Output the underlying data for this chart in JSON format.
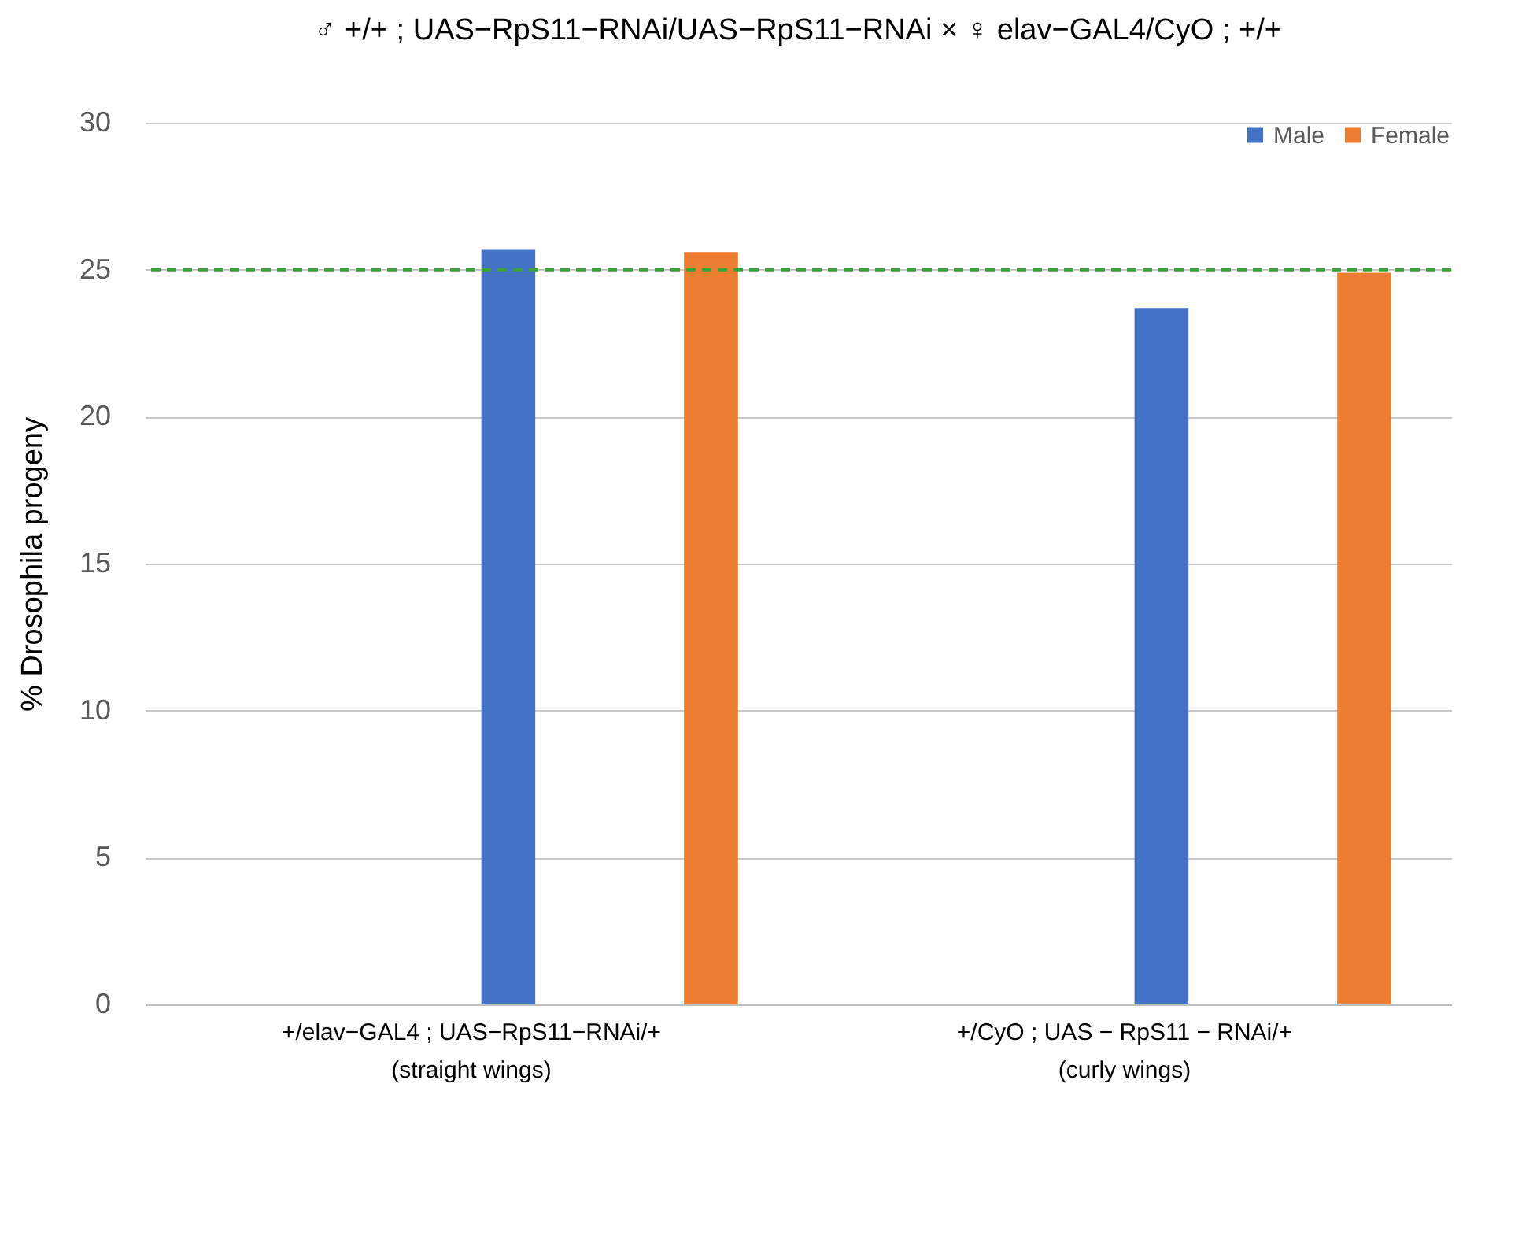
{
  "chart_data": {
    "type": "bar",
    "title": "♂ +/+ ; UAS−RpS11−RNAi/UAS−RpS11−RNAi × ♀ elav−GAL4/CyO ; +/+",
    "ylabel": "% Drosophila progeny",
    "categories": [
      "+/elav−GAL4 ; UAS−RpS11−RNAi/+\n(straight wings)",
      "+/CyO ; UAS − RpS11 − RNAi/+\n(curly wings)"
    ],
    "series": [
      {
        "name": "Male",
        "color": "#4472c4",
        "values": [
          25.7,
          23.7
        ]
      },
      {
        "name": "Female",
        "color": "#ed7d31",
        "values": [
          25.6,
          24.9
        ]
      }
    ],
    "ylim": [
      0,
      30
    ],
    "yticks": [
      0,
      5,
      10,
      15,
      20,
      25,
      30
    ],
    "grid": "y",
    "legend": "top right",
    "ref_lines": [
      {
        "axis": "y",
        "value": 25,
        "color": "#3aa335",
        "line_style": "dashed"
      }
    ]
  }
}
